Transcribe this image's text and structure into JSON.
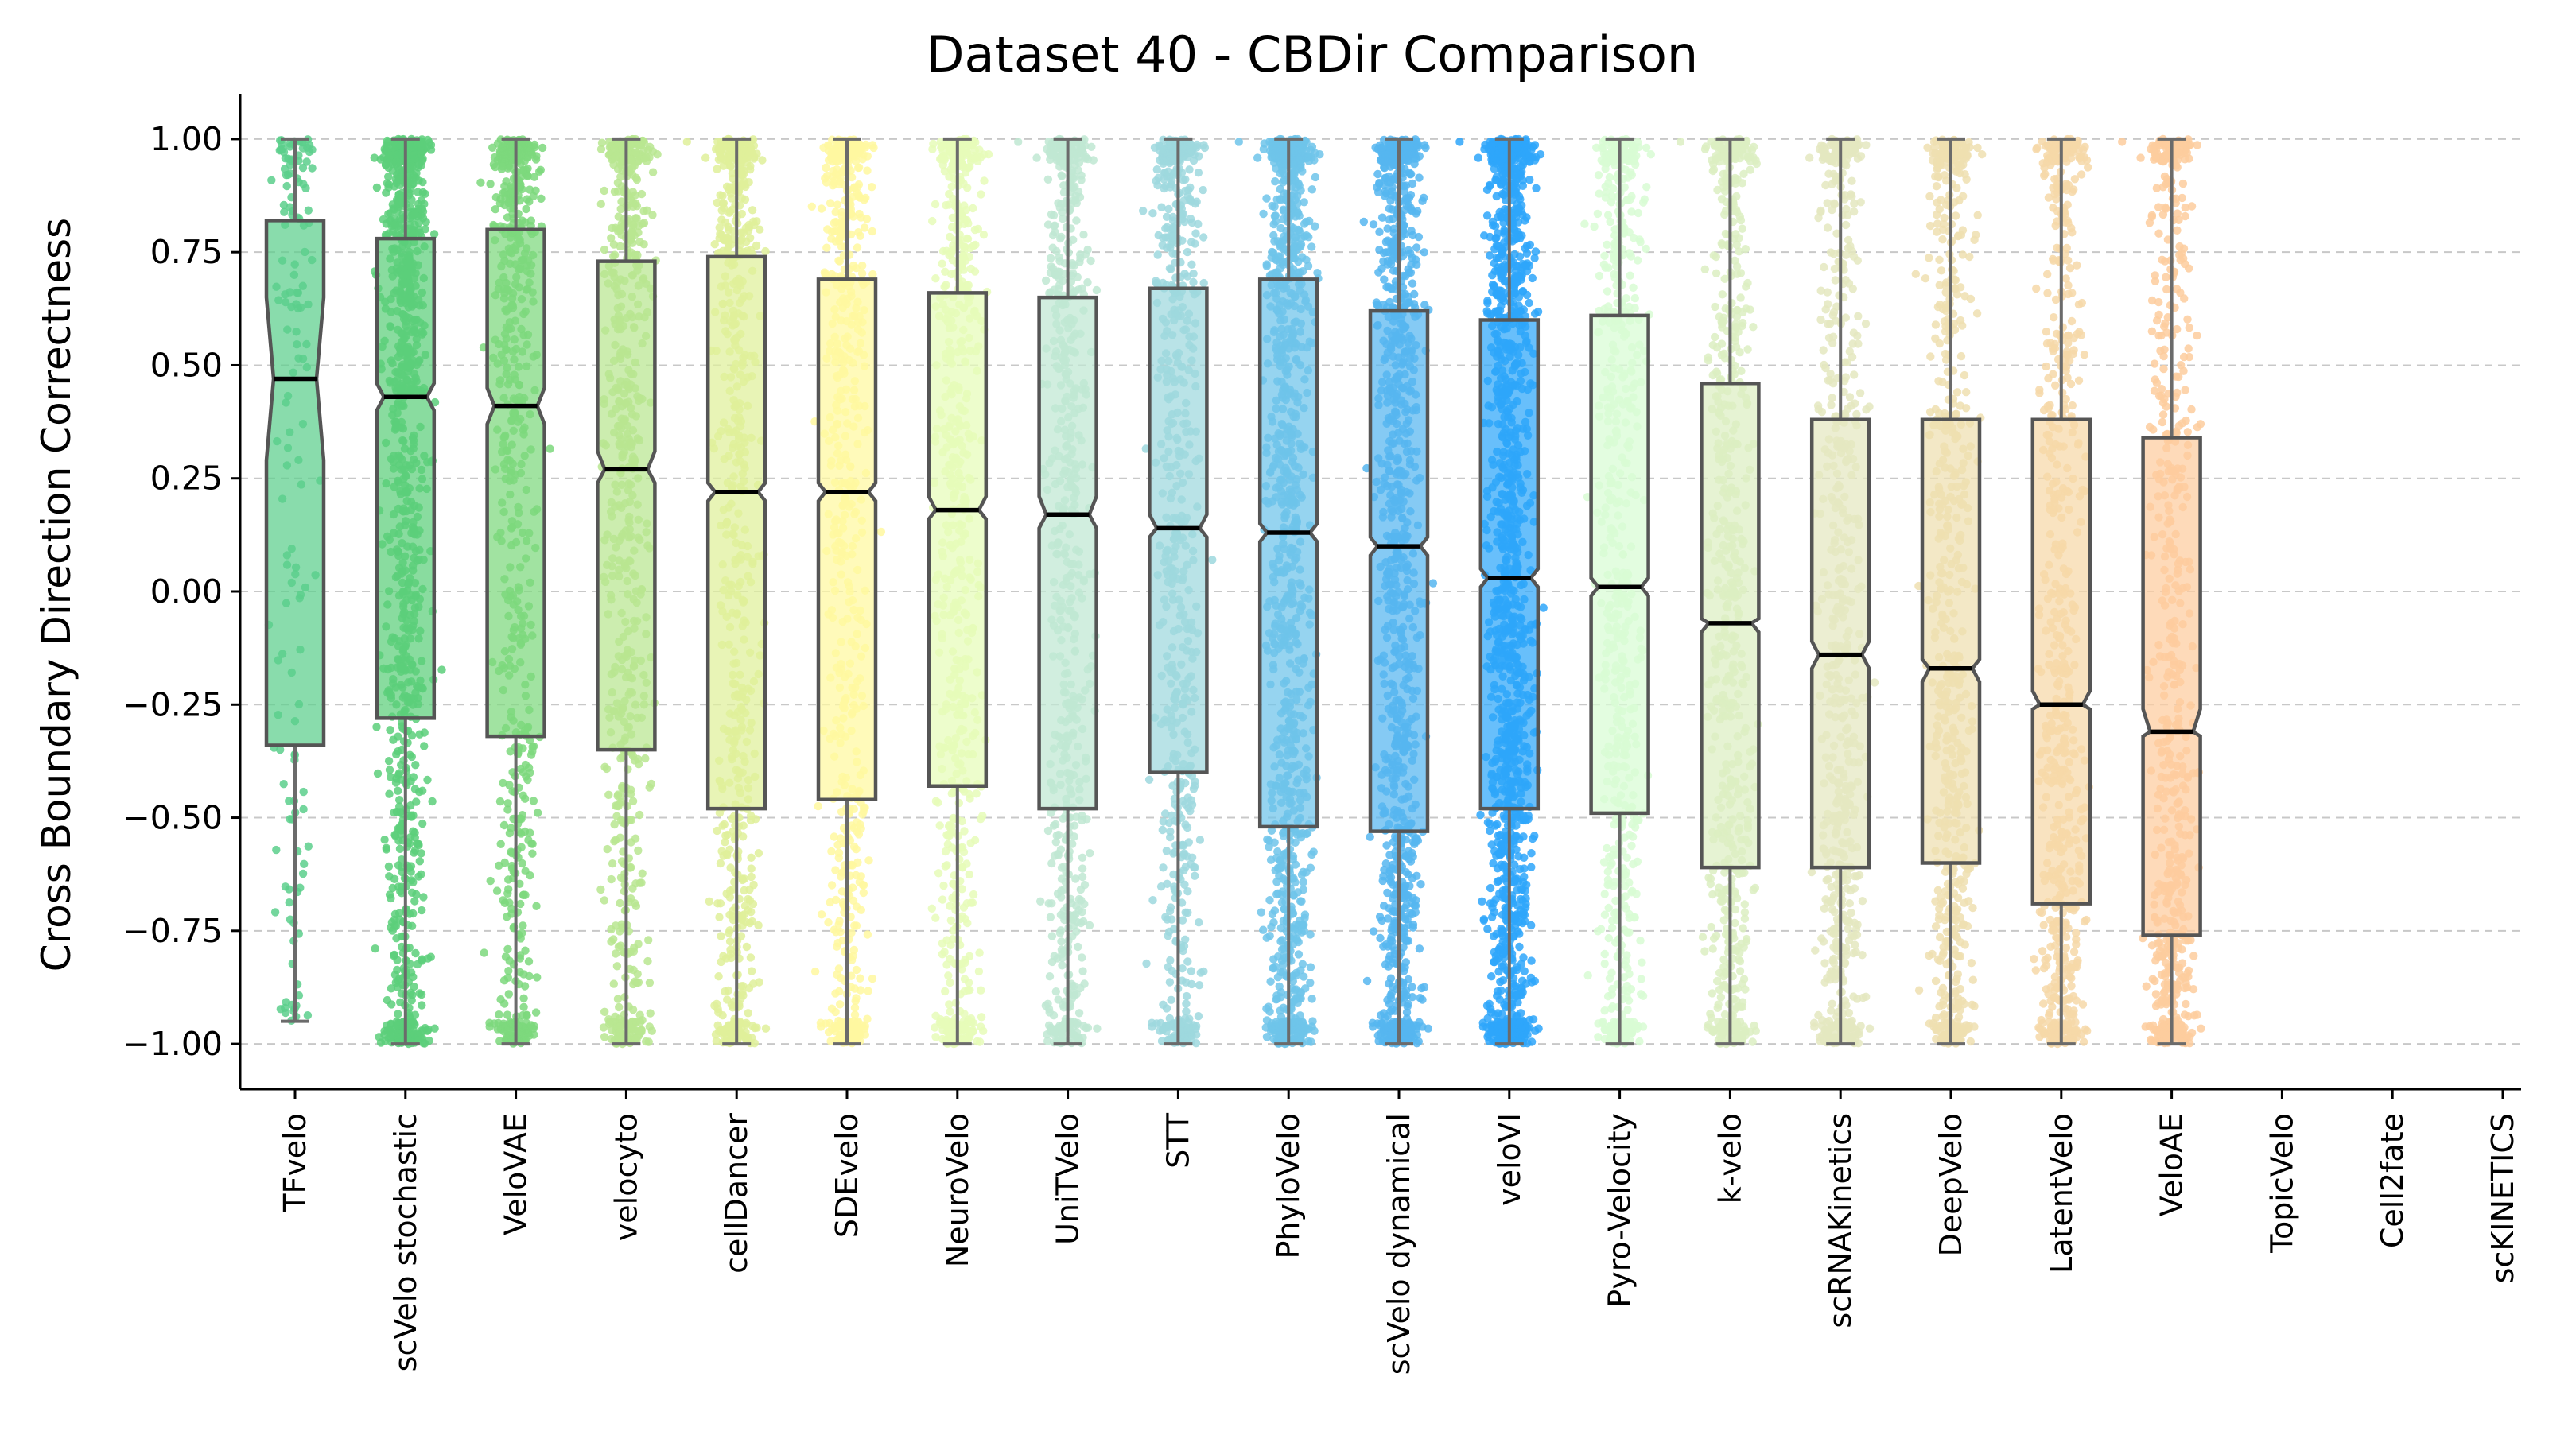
{
  "chart_data": {
    "type": "box",
    "title": "Dataset 40 - CBDir Comparison",
    "xlabel": "",
    "ylabel": "Cross Boundary Direction Correctness",
    "ylim": [
      -1.1,
      1.1
    ],
    "yticks": [
      -1.0,
      -0.75,
      -0.5,
      -0.25,
      0.0,
      0.25,
      0.5,
      0.75,
      1.0
    ],
    "ytick_labels": [
      "−1.00",
      "−0.75",
      "−0.50",
      "−0.25",
      "0.00",
      "0.25",
      "0.50",
      "0.75",
      "1.00"
    ],
    "grid": "horizontal dashed",
    "categories": [
      "TFvelo",
      "scVelo stochastic",
      "VeloVAE",
      "velocyto",
      "cellDancer",
      "SDEvelo",
      "NeuroVelo",
      "UniTVelo",
      "STT",
      "PhyloVelo",
      "scVelo dynamical",
      "veloVI",
      "Pyro-Velocity",
      "k-velo",
      "scRNAKinetics",
      "DeepVelo",
      "LatentVelo",
      "VeloAE",
      "TopicVelo",
      "Cell2fate",
      "scKINETICS"
    ],
    "series": [
      {
        "name": "TFvelo",
        "color": "#5ccf8c",
        "q1": -0.34,
        "median": 0.47,
        "q3": 0.82,
        "whisker_low": -0.95,
        "whisker_high": 1.0,
        "notch_low": 0.29,
        "notch_high": 0.65,
        "n_points": 150
      },
      {
        "name": "scVelo stochastic",
        "color": "#5ccf7a",
        "q1": -0.28,
        "median": 0.43,
        "q3": 0.78,
        "whisker_low": -1.0,
        "whisker_high": 1.0,
        "notch_low": 0.4,
        "notch_high": 0.46,
        "n_points": 1100
      },
      {
        "name": "VeloVAE",
        "color": "#7dd87d",
        "q1": -0.32,
        "median": 0.41,
        "q3": 0.8,
        "whisker_low": -1.0,
        "whisker_high": 1.0,
        "notch_low": 0.37,
        "notch_high": 0.45,
        "n_points": 650
      },
      {
        "name": "velocyto",
        "color": "#b8e690",
        "q1": -0.35,
        "median": 0.27,
        "q3": 0.73,
        "whisker_low": -1.0,
        "whisker_high": 1.0,
        "notch_low": 0.24,
        "notch_high": 0.31,
        "n_points": 650
      },
      {
        "name": "cellDancer",
        "color": "#dff09a",
        "q1": -0.48,
        "median": 0.22,
        "q3": 0.74,
        "whisker_low": -1.0,
        "whisker_high": 1.0,
        "notch_low": 0.2,
        "notch_high": 0.24,
        "n_points": 650
      },
      {
        "name": "SDEvelo",
        "color": "#fff8a0",
        "q1": -0.46,
        "median": 0.22,
        "q3": 0.69,
        "whisker_low": -1.0,
        "whisker_high": 1.0,
        "notch_low": 0.2,
        "notch_high": 0.24,
        "n_points": 650
      },
      {
        "name": "NeuroVelo",
        "color": "#e6fcb8",
        "q1": -0.43,
        "median": 0.18,
        "q3": 0.66,
        "whisker_low": -1.0,
        "whisker_high": 1.0,
        "notch_low": 0.16,
        "notch_high": 0.21,
        "n_points": 650
      },
      {
        "name": "UniTVelo",
        "color": "#bfe8d2",
        "q1": -0.48,
        "median": 0.17,
        "q3": 0.65,
        "whisker_low": -1.0,
        "whisker_high": 1.0,
        "notch_low": 0.14,
        "notch_high": 0.21,
        "n_points": 650
      },
      {
        "name": "STT",
        "color": "#9ed8de",
        "q1": -0.4,
        "median": 0.14,
        "q3": 0.67,
        "whisker_low": -1.0,
        "whisker_high": 1.0,
        "notch_low": 0.12,
        "notch_high": 0.17,
        "n_points": 650
      },
      {
        "name": "PhyloVelo",
        "color": "#6ec4ea",
        "q1": -0.52,
        "median": 0.13,
        "q3": 0.69,
        "whisker_low": -1.0,
        "whisker_high": 1.0,
        "notch_low": 0.11,
        "notch_high": 0.15,
        "n_points": 1100
      },
      {
        "name": "scVelo dynamical",
        "color": "#56b6f0",
        "q1": -0.53,
        "median": 0.1,
        "q3": 0.62,
        "whisker_low": -1.0,
        "whisker_high": 1.0,
        "notch_low": 0.08,
        "notch_high": 0.12,
        "n_points": 1100
      },
      {
        "name": "veloVI",
        "color": "#2ea6fa",
        "q1": -0.48,
        "median": 0.03,
        "q3": 0.6,
        "whisker_low": -1.0,
        "whisker_high": 1.0,
        "notch_low": 0.01,
        "notch_high": 0.05,
        "n_points": 1500
      },
      {
        "name": "Pyro-Velocity",
        "color": "#d8fcd4",
        "q1": -0.49,
        "median": 0.01,
        "q3": 0.61,
        "whisker_low": -1.0,
        "whisker_high": 1.0,
        "notch_low": -0.01,
        "notch_high": 0.03,
        "n_points": 650
      },
      {
        "name": "k-velo",
        "color": "#dcefc2",
        "q1": -0.61,
        "median": -0.07,
        "q3": 0.46,
        "whisker_low": -1.0,
        "whisker_high": 1.0,
        "notch_low": -0.09,
        "notch_high": -0.06,
        "n_points": 650
      },
      {
        "name": "scRNAKinetics",
        "color": "#e4e8c0",
        "q1": -0.61,
        "median": -0.14,
        "q3": 0.38,
        "whisker_low": -1.0,
        "whisker_high": 1.0,
        "notch_low": -0.17,
        "notch_high": -0.11,
        "n_points": 650
      },
      {
        "name": "DeepVelo",
        "color": "#eedfb0",
        "q1": -0.6,
        "median": -0.17,
        "q3": 0.38,
        "whisker_low": -1.0,
        "whisker_high": 1.0,
        "notch_low": -0.2,
        "notch_high": -0.15,
        "n_points": 650
      },
      {
        "name": "LatentVelo",
        "color": "#f6d8a8",
        "q1": -0.69,
        "median": -0.25,
        "q3": 0.38,
        "whisker_low": -1.0,
        "whisker_high": 1.0,
        "notch_low": -0.26,
        "notch_high": -0.22,
        "n_points": 650
      },
      {
        "name": "VeloAE",
        "color": "#fdcc9e",
        "q1": -0.76,
        "median": -0.31,
        "q3": 0.34,
        "whisker_low": -1.0,
        "whisker_high": 1.0,
        "notch_low": -0.32,
        "notch_high": -0.26,
        "n_points": 650
      },
      {
        "name": "TopicVelo",
        "color": "#cccccc",
        "empty": true
      },
      {
        "name": "Cell2fate",
        "color": "#cccccc",
        "empty": true
      },
      {
        "name": "scKINETICS",
        "color": "#cccccc",
        "empty": true
      }
    ]
  }
}
